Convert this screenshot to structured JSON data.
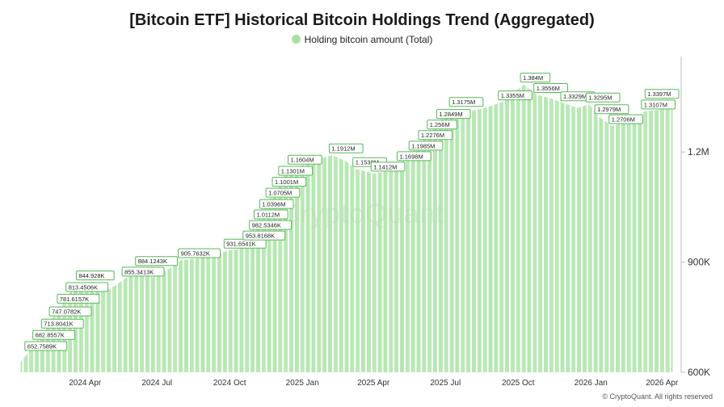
{
  "chart_data": {
    "type": "bar",
    "title": "[Bitcoin ETF] Historical Bitcoin Holdings Trend (Aggregated)",
    "legend_position": "top-center",
    "series": [
      {
        "name": "Holding bitcoin amount (Total)",
        "color": "#a6e3a1"
      }
    ],
    "y_axis": {
      "side": "right",
      "min": 600000,
      "max": 1460000,
      "ticks": [
        600000,
        900000,
        1200000
      ],
      "tick_labels": [
        "600K",
        "900K",
        "1.2M"
      ]
    },
    "x_ticks": [
      {
        "date": "2024-04-01",
        "label": "2024 Apr"
      },
      {
        "date": "2024-07-01",
        "label": "2024 Jul"
      },
      {
        "date": "2024-10-01",
        "label": "2024 Oct"
      },
      {
        "date": "2025-01-01",
        "label": "2025 Jan"
      },
      {
        "date": "2025-04-01",
        "label": "2025 Apr"
      },
      {
        "date": "2025-07-01",
        "label": "2025 Jul"
      },
      {
        "date": "2025-10-01",
        "label": "2025 Oct"
      },
      {
        "date": "2026-01-01",
        "label": "2026 Jan"
      },
      {
        "date": "2026-04-01",
        "label": "2026 Apr"
      }
    ],
    "x_range": [
      "2024-01-11",
      "2026-04-14"
    ],
    "trend": [
      {
        "date": "2024-01-11",
        "value": 630000
      },
      {
        "date": "2024-01-20",
        "value": 652759
      },
      {
        "date": "2024-01-30",
        "value": 682856
      },
      {
        "date": "2024-02-10",
        "value": 713804
      },
      {
        "date": "2024-02-20",
        "value": 747078
      },
      {
        "date": "2024-03-01",
        "value": 781616
      },
      {
        "date": "2024-03-12",
        "value": 813451
      },
      {
        "date": "2024-03-25",
        "value": 844928
      },
      {
        "date": "2024-04-12",
        "value": 846000
      },
      {
        "date": "2024-05-01",
        "value": 825000
      },
      {
        "date": "2024-05-22",
        "value": 855341
      },
      {
        "date": "2024-06-08",
        "value": 884124
      },
      {
        "date": "2024-06-25",
        "value": 858000
      },
      {
        "date": "2024-07-15",
        "value": 880000
      },
      {
        "date": "2024-08-01",
        "value": 905763
      },
      {
        "date": "2024-08-20",
        "value": 910000
      },
      {
        "date": "2024-09-10",
        "value": 915000
      },
      {
        "date": "2024-09-28",
        "value": 931654
      },
      {
        "date": "2024-10-10",
        "value": 935000
      },
      {
        "date": "2024-10-22",
        "value": 953817
      },
      {
        "date": "2024-10-30",
        "value": 982535
      },
      {
        "date": "2024-11-05",
        "value": 1011200
      },
      {
        "date": "2024-11-12",
        "value": 1039600
      },
      {
        "date": "2024-11-20",
        "value": 1070500
      },
      {
        "date": "2024-11-28",
        "value": 1100100
      },
      {
        "date": "2024-12-06",
        "value": 1130100
      },
      {
        "date": "2024-12-18",
        "value": 1160400
      },
      {
        "date": "2025-01-05",
        "value": 1165000
      },
      {
        "date": "2025-01-20",
        "value": 1180000
      },
      {
        "date": "2025-02-08",
        "value": 1191200
      },
      {
        "date": "2025-02-25",
        "value": 1175000
      },
      {
        "date": "2025-03-10",
        "value": 1153800
      },
      {
        "date": "2025-04-02",
        "value": 1141200
      },
      {
        "date": "2025-04-20",
        "value": 1148000
      },
      {
        "date": "2025-05-05",
        "value": 1169800
      },
      {
        "date": "2025-05-20",
        "value": 1198500
      },
      {
        "date": "2025-06-01",
        "value": 1227600
      },
      {
        "date": "2025-06-12",
        "value": 1256000
      },
      {
        "date": "2025-06-24",
        "value": 1284900
      },
      {
        "date": "2025-07-10",
        "value": 1317500
      },
      {
        "date": "2025-07-30",
        "value": 1310000
      },
      {
        "date": "2025-08-20",
        "value": 1320000
      },
      {
        "date": "2025-09-10",
        "value": 1335500
      },
      {
        "date": "2025-09-25",
        "value": 1360000
      },
      {
        "date": "2025-10-08",
        "value": 1384000
      },
      {
        "date": "2025-10-25",
        "value": 1355600
      },
      {
        "date": "2025-11-12",
        "value": 1345000
      },
      {
        "date": "2025-11-28",
        "value": 1332900
      },
      {
        "date": "2025-12-15",
        "value": 1320000
      },
      {
        "date": "2025-12-30",
        "value": 1329500
      },
      {
        "date": "2026-01-10",
        "value": 1297900
      },
      {
        "date": "2026-01-28",
        "value": 1270600
      },
      {
        "date": "2026-02-20",
        "value": 1285000
      },
      {
        "date": "2026-03-10",
        "value": 1310700
      },
      {
        "date": "2026-03-28",
        "value": 1315000
      },
      {
        "date": "2026-04-10",
        "value": 1339700
      },
      {
        "date": "2026-04-14",
        "value": 1340000
      }
    ],
    "annotations": [
      {
        "date": "2024-01-20",
        "value": 652759,
        "label": "652.7589K"
      },
      {
        "date": "2024-01-30",
        "value": 682856,
        "label": "682.8557K"
      },
      {
        "date": "2024-02-10",
        "value": 713804,
        "label": "713.8041K"
      },
      {
        "date": "2024-02-20",
        "value": 747078,
        "label": "747.0782K"
      },
      {
        "date": "2024-03-01",
        "value": 781616,
        "label": "781.6157K"
      },
      {
        "date": "2024-03-12",
        "value": 813451,
        "label": "813.4506K"
      },
      {
        "date": "2024-03-25",
        "value": 844928,
        "label": "844.928K"
      },
      {
        "date": "2024-05-22",
        "value": 855341,
        "label": "855.3413K"
      },
      {
        "date": "2024-06-08",
        "value": 884124,
        "label": "884.1243K"
      },
      {
        "date": "2024-08-01",
        "value": 905763,
        "label": "905.7632K"
      },
      {
        "date": "2024-09-28",
        "value": 931654,
        "label": "931.6541K"
      },
      {
        "date": "2024-10-22",
        "value": 953817,
        "label": "953.8168K"
      },
      {
        "date": "2024-10-30",
        "value": 982535,
        "label": "982.5346K"
      },
      {
        "date": "2024-11-05",
        "value": 1011200,
        "label": "1.0112M"
      },
      {
        "date": "2024-11-12",
        "value": 1039600,
        "label": "1.0396M"
      },
      {
        "date": "2024-11-20",
        "value": 1070500,
        "label": "1.0705M"
      },
      {
        "date": "2024-11-28",
        "value": 1100100,
        "label": "1.1001M"
      },
      {
        "date": "2024-12-06",
        "value": 1130100,
        "label": "1.1301M"
      },
      {
        "date": "2024-12-18",
        "value": 1160400,
        "label": "1.1604M"
      },
      {
        "date": "2025-02-08",
        "value": 1191200,
        "label": "1.1912M"
      },
      {
        "date": "2025-03-10",
        "value": 1153800,
        "label": "1.1538M"
      },
      {
        "date": "2025-04-02",
        "value": 1141200,
        "label": "1.1412M"
      },
      {
        "date": "2025-05-05",
        "value": 1169800,
        "label": "1.1698M"
      },
      {
        "date": "2025-05-20",
        "value": 1198500,
        "label": "1.1985M"
      },
      {
        "date": "2025-06-01",
        "value": 1227600,
        "label": "1.2276M"
      },
      {
        "date": "2025-06-12",
        "value": 1256000,
        "label": "1.256M"
      },
      {
        "date": "2025-06-24",
        "value": 1284900,
        "label": "1.2849M"
      },
      {
        "date": "2025-07-10",
        "value": 1317500,
        "label": "1.3175M"
      },
      {
        "date": "2025-09-10",
        "value": 1335500,
        "label": "1.3355M"
      },
      {
        "date": "2025-10-08",
        "value": 1384000,
        "label": "1.384M"
      },
      {
        "date": "2025-10-25",
        "value": 1355600,
        "label": "1.3556M"
      },
      {
        "date": "2025-11-28",
        "value": 1332900,
        "label": "1.3329M"
      },
      {
        "date": "2025-12-30",
        "value": 1329500,
        "label": "1.3295M"
      },
      {
        "date": "2026-01-10",
        "value": 1297900,
        "label": "1.2979M"
      },
      {
        "date": "2026-01-28",
        "value": 1270600,
        "label": "1.2706M"
      },
      {
        "date": "2026-03-10",
        "value": 1310700,
        "label": "1.3107M"
      },
      {
        "date": "2026-04-10",
        "value": 1339700,
        "label": "1.3397M"
      }
    ]
  },
  "watermark": "CryptoQuant",
  "credit": "© CryptoQuant. All rights reserved"
}
